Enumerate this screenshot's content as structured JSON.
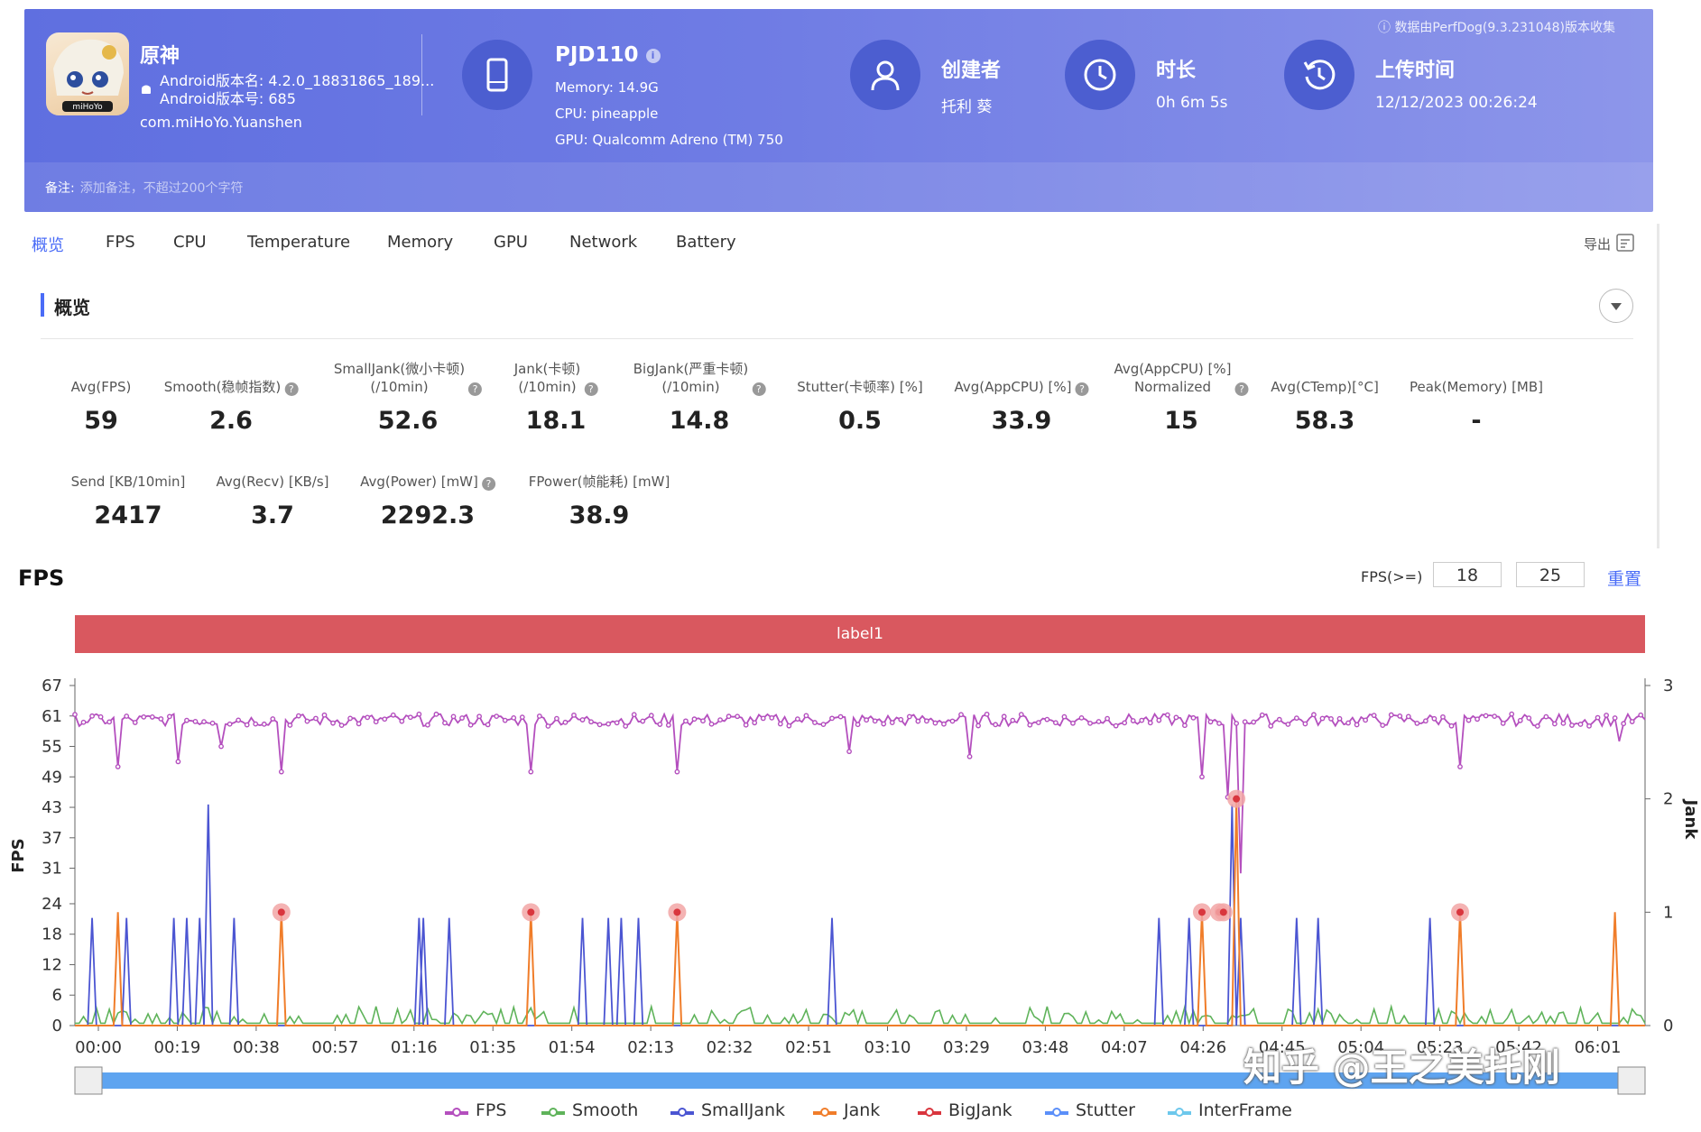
{
  "header": {
    "app": {
      "name": "原神",
      "android_version_name": "Android版本名: 4.2.0_18831865_189...",
      "android_version_code": "Android版本号: 685",
      "package": "com.miHoYo.Yuanshen"
    },
    "device": {
      "name": "PJD110",
      "memory": "Memory: 14.9G",
      "cpu": "CPU: pineapple",
      "gpu": "GPU: Qualcomm Adreno (TM) 750"
    },
    "creator": {
      "title": "创建者",
      "value": "托利 葵"
    },
    "duration": {
      "title": "时长",
      "value": "0h 6m 5s"
    },
    "upload": {
      "title": "上传时间",
      "value": "12/12/2023 00:26:24"
    },
    "perfdog_note": "数据由PerfDog(9.3.231048)版本收集",
    "remark_label": "备注:",
    "remark_placeholder": "添加备注，不超过200个字符"
  },
  "tabs": [
    "概览",
    "FPS",
    "CPU",
    "Temperature",
    "Memory",
    "GPU",
    "Network",
    "Battery"
  ],
  "export_label": "导出",
  "overview": {
    "title": "概览",
    "stats": [
      {
        "label": "Avg(FPS)",
        "value": "59",
        "help": false
      },
      {
        "label": "Smooth(稳帧指数)",
        "value": "2.6",
        "help": true
      },
      {
        "label": "SmallJank(微小卡顿)\n(/10min)",
        "value": "52.6",
        "help": true
      },
      {
        "label": "Jank(卡顿)\n(/10min)",
        "value": "18.1",
        "help": true
      },
      {
        "label": "BigJank(严重卡顿)\n(/10min)",
        "value": "14.8",
        "help": true
      },
      {
        "label": "Stutter(卡顿率) [%]",
        "value": "0.5",
        "help": false
      },
      {
        "label": "Avg(AppCPU) [%]",
        "value": "33.9",
        "help": true
      },
      {
        "label": "Avg(AppCPU) [%]\nNormalized",
        "value": "15",
        "help": true
      },
      {
        "label": "Avg(CTemp)[°C]",
        "value": "58.3",
        "help": false
      },
      {
        "label": "Peak(Memory) [MB]",
        "value": "-",
        "help": false
      },
      {
        "label": "Send [KB/10min]",
        "value": "2417",
        "help": false
      },
      {
        "label": "Avg(Recv) [KB/s]",
        "value": "3.7",
        "help": false
      },
      {
        "label": "Avg(Power) [mW]",
        "value": "2292.3",
        "help": true
      },
      {
        "label": "FPower(帧能耗) [mW]",
        "value": "38.9",
        "help": false
      }
    ]
  },
  "fps_section": {
    "title": "FPS",
    "threshold_label": "FPS(>=)",
    "threshold_1": "18",
    "threshold_2": "25",
    "reset_label": "重置",
    "label_band": "label1"
  },
  "chart_data": {
    "type": "line",
    "left_axis": {
      "label": "FPS",
      "ticks": [
        "0",
        "6",
        "12",
        "18",
        "24",
        "31",
        "37",
        "43",
        "49",
        "55",
        "61",
        "67"
      ]
    },
    "right_axis": {
      "label": "Jank",
      "ticks": [
        "0",
        "1",
        "2",
        "3"
      ]
    },
    "x_ticks": [
      "00:00",
      "00:19",
      "00:38",
      "00:57",
      "01:16",
      "01:35",
      "01:54",
      "02:13",
      "02:32",
      "02:51",
      "03:10",
      "03:29",
      "03:48",
      "04:07",
      "04:26",
      "04:45",
      "05:04",
      "05:23",
      "05:42",
      "06:01"
    ],
    "series": [
      {
        "name": "FPS",
        "color": "#b44fbe"
      },
      {
        "name": "Smooth",
        "color": "#5fb35a"
      },
      {
        "name": "SmallJank",
        "color": "#4b55d2"
      },
      {
        "name": "Jank",
        "color": "#f07d2a"
      },
      {
        "name": "BigJank",
        "color": "#d9363e"
      },
      {
        "name": "Stutter",
        "color": "#5b8ff9"
      },
      {
        "name": "InterFrame",
        "color": "#6dc8ec"
      }
    ],
    "fps_dips": [
      {
        "t": 10,
        "fps": 51
      },
      {
        "t": 24,
        "fps": 52
      },
      {
        "t": 34,
        "fps": 55
      },
      {
        "t": 48,
        "fps": 50
      },
      {
        "t": 106,
        "fps": 50
      },
      {
        "t": 140,
        "fps": 50
      },
      {
        "t": 180,
        "fps": 54
      },
      {
        "t": 208,
        "fps": 53
      },
      {
        "t": 262,
        "fps": 49
      },
      {
        "t": 268,
        "fps": 45
      },
      {
        "t": 271,
        "fps": 30
      },
      {
        "t": 322,
        "fps": 51
      },
      {
        "t": 359,
        "fps": 56
      }
    ],
    "smalljank_spikes": [
      {
        "t": 4,
        "v": 0.95
      },
      {
        "t": 12,
        "v": 0.95
      },
      {
        "t": 23,
        "v": 0.95
      },
      {
        "t": 26,
        "v": 0.95
      },
      {
        "t": 29,
        "v": 0.95
      },
      {
        "t": 31,
        "v": 1.95
      },
      {
        "t": 37,
        "v": 0.95
      },
      {
        "t": 80,
        "v": 0.95
      },
      {
        "t": 81,
        "v": 0.95
      },
      {
        "t": 87,
        "v": 0.95
      },
      {
        "t": 118,
        "v": 0.95
      },
      {
        "t": 124,
        "v": 0.95
      },
      {
        "t": 127,
        "v": 0.95
      },
      {
        "t": 131,
        "v": 0.95
      },
      {
        "t": 176,
        "v": 0.95
      },
      {
        "t": 252,
        "v": 0.95
      },
      {
        "t": 259,
        "v": 0.95
      },
      {
        "t": 269,
        "v": 1.95
      },
      {
        "t": 271,
        "v": 0.95
      },
      {
        "t": 284,
        "v": 0.95
      },
      {
        "t": 289,
        "v": 0.95
      },
      {
        "t": 315,
        "v": 0.95
      }
    ],
    "jank_spikes": [
      {
        "t": 10,
        "v": 1.0
      },
      {
        "t": 48,
        "v": 1.0
      },
      {
        "t": 106,
        "v": 1.0
      },
      {
        "t": 140,
        "v": 1.0
      },
      {
        "t": 262,
        "v": 1.0
      },
      {
        "t": 270,
        "v": 2.0
      },
      {
        "t": 322,
        "v": 1.0
      },
      {
        "t": 358,
        "v": 1.0
      }
    ],
    "bigjank_points": [
      {
        "t": 48,
        "v": 1.0
      },
      {
        "t": 106,
        "v": 1.0
      },
      {
        "t": 140,
        "v": 1.0
      },
      {
        "t": 262,
        "v": 1.0
      },
      {
        "t": 266,
        "v": 1.0
      },
      {
        "t": 267,
        "v": 1.0
      },
      {
        "t": 270,
        "v": 2.0
      },
      {
        "t": 322,
        "v": 1.0
      }
    ]
  },
  "watermark": "知乎 @王之美托刚"
}
